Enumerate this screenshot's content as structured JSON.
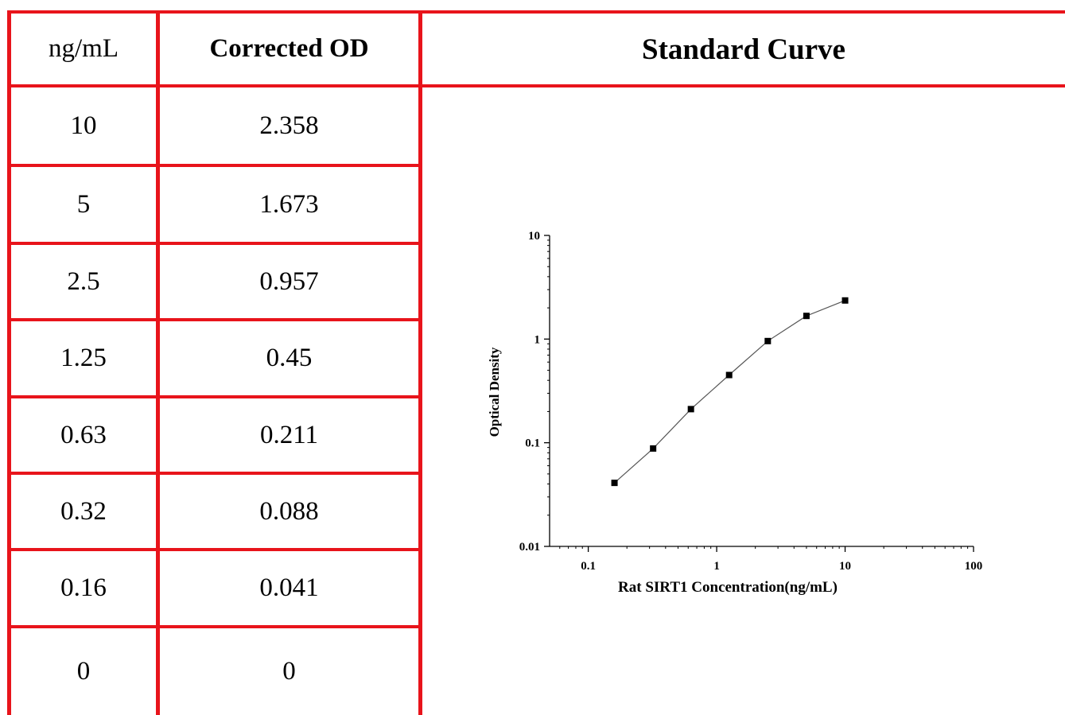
{
  "table": {
    "headers": {
      "concentration": "ng/mL",
      "od": "Corrected OD"
    },
    "rows": [
      {
        "conc": "10",
        "od": "2.358"
      },
      {
        "conc": "5",
        "od": "1.673"
      },
      {
        "conc": "2.5",
        "od": "0.957"
      },
      {
        "conc": "1.25",
        "od": "0.45"
      },
      {
        "conc": "0.63",
        "od": "0.211"
      },
      {
        "conc": "0.32",
        "od": "0.088"
      },
      {
        "conc": "0.16",
        "od": "0.041"
      },
      {
        "conc": "0",
        "od": "0"
      }
    ]
  },
  "panel_title": "Standard Curve",
  "colors": {
    "grid_lines": "#e8141b",
    "series": "#000000"
  },
  "chart_data": {
    "type": "line",
    "title": "",
    "xlabel": "Rat SIRT1 Concentration(ng/mL)",
    "ylabel": "Optical Density",
    "x_scale": "log",
    "y_scale": "log",
    "xlim": [
      0.05,
      100
    ],
    "ylim": [
      0.01,
      10
    ],
    "x_ticks": [
      {
        "value": 0.1,
        "label": "0.1"
      },
      {
        "value": 1,
        "label": "1"
      },
      {
        "value": 10,
        "label": "10"
      },
      {
        "value": 100,
        "label": "100"
      }
    ],
    "y_ticks": [
      {
        "value": 0.01,
        "label": "0.01"
      },
      {
        "value": 0.1,
        "label": "0.1"
      },
      {
        "value": 1,
        "label": "1"
      },
      {
        "value": 10,
        "label": "10"
      }
    ],
    "grid": false,
    "markers": "square",
    "x": [
      0.16,
      0.32,
      0.63,
      1.25,
      2.5,
      5,
      10
    ],
    "y": [
      0.041,
      0.088,
      0.211,
      0.45,
      0.957,
      1.673,
      2.358
    ]
  }
}
